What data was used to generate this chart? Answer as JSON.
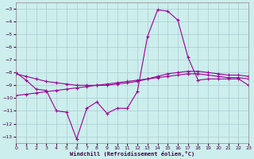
{
  "xlabel": "Windchill (Refroidissement éolien,°C)",
  "bg_color": "#cceeed",
  "grid_color": "#aacccc",
  "line_color": "#990099",
  "xlim": [
    0,
    23
  ],
  "ylim": [
    -13.5,
    -2.5
  ],
  "yticks": [
    -13,
    -12,
    -11,
    -10,
    -9,
    -8,
    -7,
    -6,
    -5,
    -4,
    -3
  ],
  "xticks": [
    0,
    1,
    2,
    3,
    4,
    5,
    6,
    7,
    8,
    9,
    10,
    11,
    12,
    13,
    14,
    15,
    16,
    17,
    18,
    19,
    20,
    21,
    22,
    23
  ],
  "curve1_x": [
    0,
    1,
    2,
    3,
    4,
    5,
    6,
    7,
    8,
    9,
    10,
    11,
    12,
    13,
    14,
    15,
    16,
    17,
    18,
    19,
    20,
    21,
    22,
    23
  ],
  "curve1_y": [
    -8.0,
    -8.6,
    -9.3,
    -9.4,
    -11.0,
    -11.1,
    -13.2,
    -10.8,
    -10.3,
    -11.2,
    -10.8,
    -10.8,
    -9.5,
    -5.2,
    -3.1,
    -3.2,
    -3.9,
    -6.8,
    -8.6,
    -8.5,
    -8.5,
    -8.5,
    -8.5,
    -9.0
  ],
  "curve2_x": [
    0,
    1,
    2,
    3,
    4,
    5,
    6,
    7,
    8,
    9,
    10,
    11,
    12,
    13,
    14,
    15,
    16,
    17,
    18,
    19,
    20,
    21,
    22,
    23
  ],
  "curve2_y": [
    -8.1,
    -8.3,
    -8.5,
    -8.7,
    -8.8,
    -8.9,
    -9.0,
    -9.0,
    -9.0,
    -9.0,
    -8.9,
    -8.8,
    -8.7,
    -8.5,
    -8.3,
    -8.1,
    -8.0,
    -7.9,
    -7.9,
    -8.0,
    -8.1,
    -8.2,
    -8.2,
    -8.3
  ],
  "curve3_x": [
    0,
    1,
    2,
    3,
    4,
    5,
    6,
    7,
    8,
    9,
    10,
    11,
    12,
    13,
    14,
    15,
    16,
    17,
    18,
    19,
    20,
    21,
    22,
    23
  ],
  "curve3_y": [
    -9.8,
    -9.7,
    -9.6,
    -9.5,
    -9.4,
    -9.3,
    -9.2,
    -9.1,
    -9.0,
    -8.9,
    -8.8,
    -8.7,
    -8.6,
    -8.5,
    -8.4,
    -8.3,
    -8.2,
    -8.1,
    -8.1,
    -8.2,
    -8.3,
    -8.4,
    -8.4,
    -8.5
  ]
}
